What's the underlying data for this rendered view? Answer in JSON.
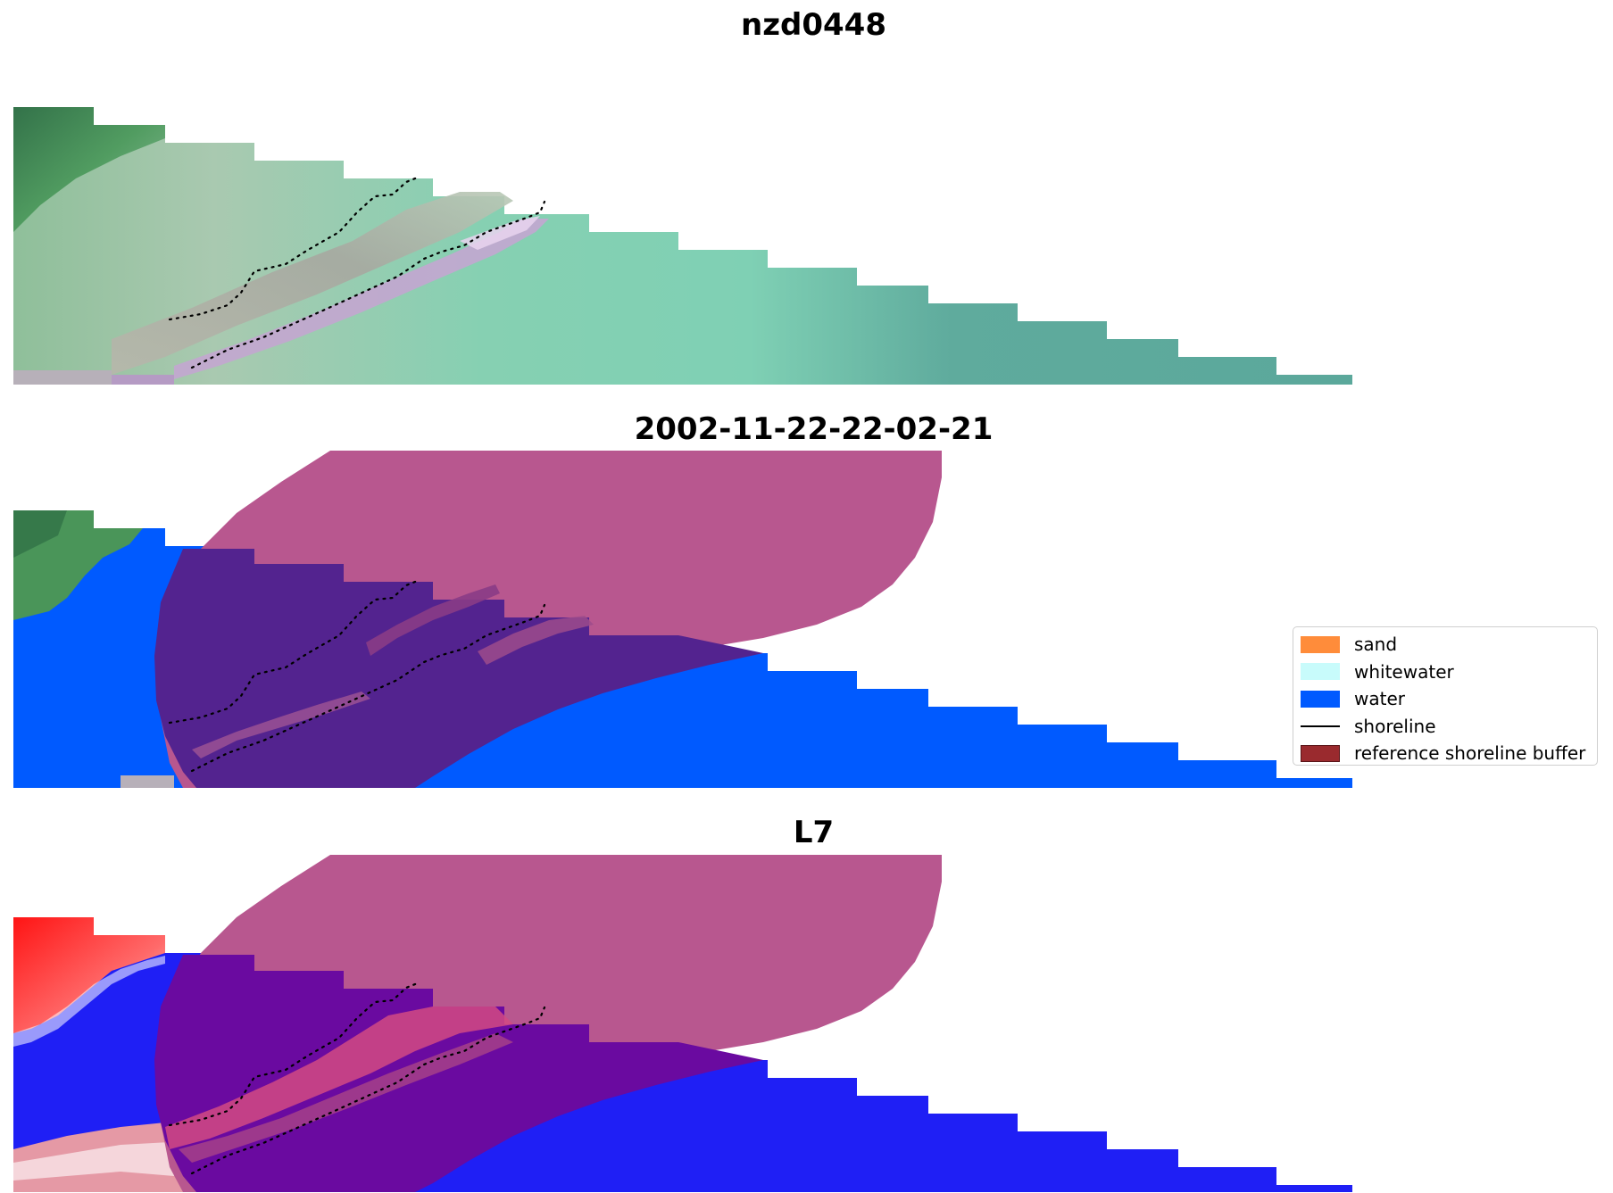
{
  "panels": [
    {
      "title": "nzd0448",
      "kind": "rgb"
    },
    {
      "title": "2002-11-22-22-02-21",
      "kind": "classified"
    },
    {
      "title": "L7",
      "kind": "index"
    }
  ],
  "legend": {
    "items": [
      {
        "label": "sand",
        "color": "#ff8c3a",
        "type": "patch"
      },
      {
        "label": "whitewater",
        "color": "#c8fbfb",
        "type": "patch"
      },
      {
        "label": "water",
        "color": "#005aff",
        "type": "patch"
      },
      {
        "label": "shoreline",
        "color": "#000000",
        "type": "line"
      },
      {
        "label": "reference shoreline buffer",
        "color": "#9a2a2e",
        "type": "patch",
        "edge": "#5a1418"
      }
    ]
  },
  "colors": {
    "buffer_overlay": "#b8578f",
    "water": "#005aff",
    "water_under_buffer": "#53238f",
    "vegetation": "#4f9b5c",
    "shallow_water": "#86cdb3",
    "index_red": "#ff2020",
    "index_blue": "#1414f0",
    "index_under_buffer": "#6a0aa0"
  }
}
